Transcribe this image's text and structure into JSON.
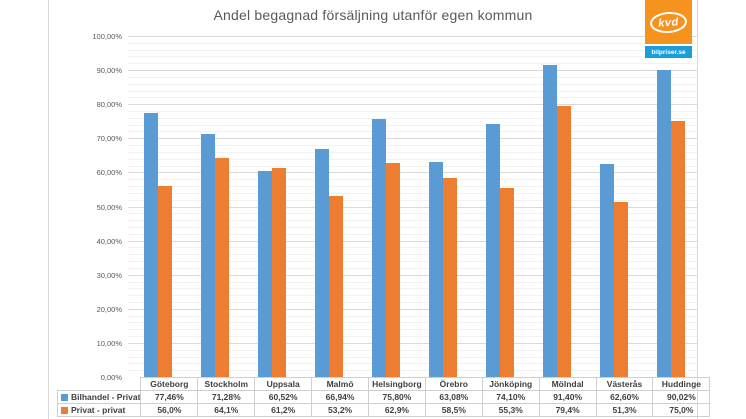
{
  "chart_data": {
    "type": "bar",
    "title": "Andel begagnad försäljning utanför egen kommun",
    "categories": [
      "Göteborg",
      "Stockholm",
      "Uppsala",
      "Malmö",
      "Helsingborg",
      "Örebro",
      "Jönköping",
      "Mölndal",
      "Västerås",
      "Huddinge"
    ],
    "series": [
      {
        "name": "Bilhandel - Privat",
        "color": "#5b9bd5",
        "values": [
          77.46,
          71.28,
          60.52,
          66.94,
          75.8,
          63.08,
          74.1,
          91.4,
          62.6,
          90.02
        ],
        "labels": [
          "77,46%",
          "71,28%",
          "60,52%",
          "66,94%",
          "75,80%",
          "63,08%",
          "74,10%",
          "91,40%",
          "62,60%",
          "90,02%"
        ]
      },
      {
        "name": "Privat - privat",
        "color": "#ed7d31",
        "values": [
          56.0,
          64.1,
          61.2,
          53.2,
          62.9,
          58.5,
          55.3,
          79.4,
          51.3,
          75.0
        ],
        "labels": [
          "56,0%",
          "64,1%",
          "61,2%",
          "53,2%",
          "62,9%",
          "58,5%",
          "55,3%",
          "79,4%",
          "51,3%",
          "75,0%"
        ]
      }
    ],
    "xlabel": "",
    "ylabel": "",
    "ylim": [
      0,
      100
    ],
    "y_major_step": 10,
    "y_minor_step": 2,
    "y_tick_labels_top_down": [
      "100,00%",
      "90,00%",
      "80,00%",
      "70,00%",
      "60,00%",
      "50,00%",
      "40,00%",
      "30,00%",
      "20,00%",
      "10,00%",
      "0,00%"
    ],
    "grid": true,
    "legend_position": "table-left"
  },
  "logo": {
    "brand": "kvd",
    "site": "bilpriser.se",
    "orange": "#f6921e",
    "blue": "#1b9dd9"
  }
}
